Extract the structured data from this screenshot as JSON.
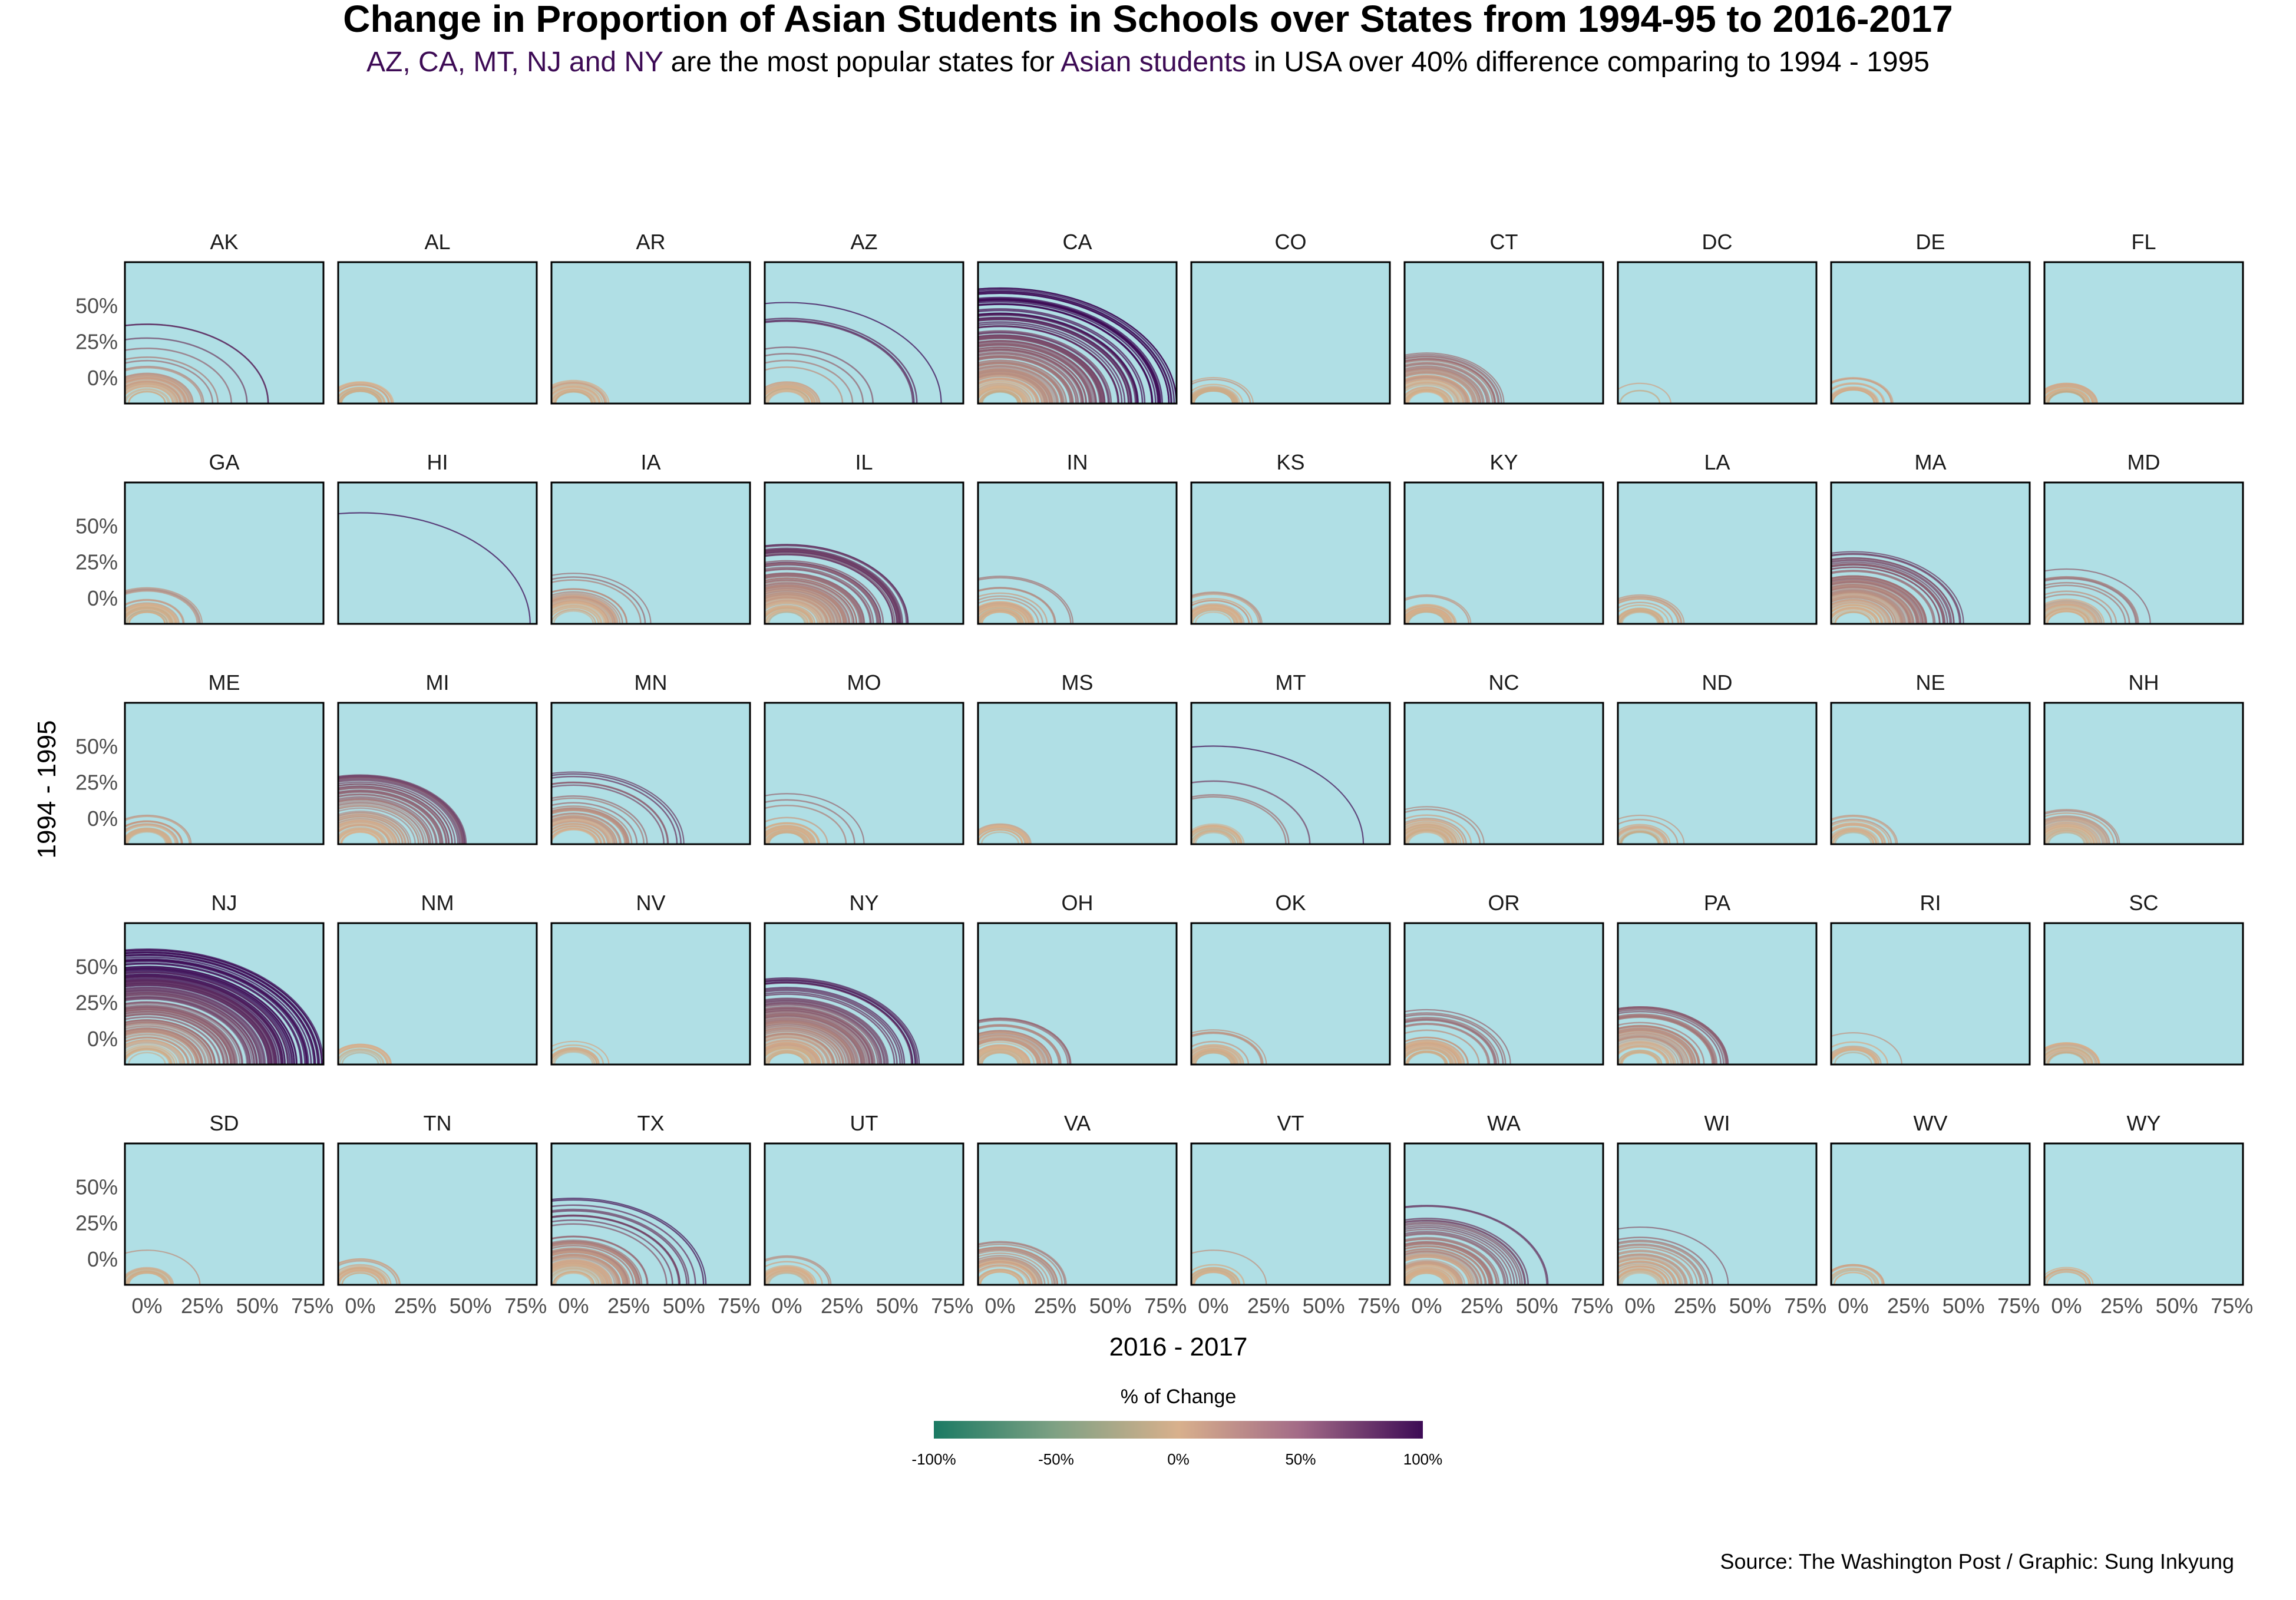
{
  "title": "Change in Proportion of Asian Students in Schools over States from 1994-95 to 2016-2017",
  "subtitle": {
    "part1": "AZ, CA, MT, NJ and NY",
    "part2": " are the most popular states for ",
    "part3": "Asian students",
    "part4": " in USA over 40% difference comparing to 1994 - 1995"
  },
  "colors": {
    "panel_bg": "#b0dfe5",
    "accent_text": "#3d0b55",
    "scale_low": "#1b7a63",
    "scale_mid": "#d8b08c",
    "scale_high": "#3d0b55"
  },
  "legend": {
    "title": "% of Change",
    "ticks": [
      "-100%",
      "-50%",
      "0%",
      "50%",
      "100%"
    ]
  },
  "source": "Source: The Washington Post / Graphic: Sung Inkyung",
  "chart_data": {
    "type": "facet-arc",
    "xlabel": "2016 - 2017",
    "ylabel": "1994 - 1995",
    "xlim": [
      -0.1,
      0.8
    ],
    "ylim": [
      -0.18,
      0.8
    ],
    "x_ticks": [
      "0%",
      "25%",
      "50%",
      "75%"
    ],
    "x_tick_values": [
      0,
      0.25,
      0.5,
      0.75
    ],
    "y_ticks": [
      "50%",
      "25%",
      "0%"
    ],
    "y_tick_values": [
      0.5,
      0.25,
      0
    ],
    "color_scale": {
      "label": "% of Change",
      "domain": [
        -1,
        1
      ]
    },
    "facets": [
      {
        "state": "AK",
        "max_radius": 0.55,
        "dense_radius": 0.22,
        "arc_count": 45
      },
      {
        "state": "AL",
        "max_radius": 0.15,
        "dense_radius": 0.12,
        "arc_count": 20
      },
      {
        "state": "AR",
        "max_radius": 0.16,
        "dense_radius": 0.12,
        "arc_count": 20
      },
      {
        "state": "AZ",
        "max_radius": 0.7,
        "dense_radius": 0.15,
        "arc_count": 30
      },
      {
        "state": "CA",
        "max_radius": 0.8,
        "dense_radius": 0.5,
        "arc_count": 160
      },
      {
        "state": "CO",
        "max_radius": 0.18,
        "dense_radius": 0.12,
        "arc_count": 25
      },
      {
        "state": "CT",
        "max_radius": 0.35,
        "dense_radius": 0.25,
        "arc_count": 60
      },
      {
        "state": "DC",
        "max_radius": 0.14,
        "dense_radius": 0.0,
        "arc_count": 2
      },
      {
        "state": "DE",
        "max_radius": 0.18,
        "dense_radius": 0.12,
        "arc_count": 15
      },
      {
        "state": "FL",
        "max_radius": 0.14,
        "dense_radius": 0.12,
        "arc_count": 25
      },
      {
        "state": "GA",
        "max_radius": 0.25,
        "dense_radius": 0.14,
        "arc_count": 30
      },
      {
        "state": "HI",
        "max_radius": 0.77,
        "dense_radius": 0.0,
        "arc_count": 1
      },
      {
        "state": "IA",
        "max_radius": 0.35,
        "dense_radius": 0.18,
        "arc_count": 35
      },
      {
        "state": "IL",
        "max_radius": 0.55,
        "dense_radius": 0.35,
        "arc_count": 110
      },
      {
        "state": "IN",
        "max_radius": 0.33,
        "dense_radius": 0.15,
        "arc_count": 35
      },
      {
        "state": "KS",
        "max_radius": 0.22,
        "dense_radius": 0.14,
        "arc_count": 25
      },
      {
        "state": "KY",
        "max_radius": 0.2,
        "dense_radius": 0.12,
        "arc_count": 25
      },
      {
        "state": "LA",
        "max_radius": 0.2,
        "dense_radius": 0.12,
        "arc_count": 20
      },
      {
        "state": "MA",
        "max_radius": 0.5,
        "dense_radius": 0.3,
        "arc_count": 90
      },
      {
        "state": "MD",
        "max_radius": 0.38,
        "dense_radius": 0.15,
        "arc_count": 30
      },
      {
        "state": "ME",
        "max_radius": 0.2,
        "dense_radius": 0.12,
        "arc_count": 20
      },
      {
        "state": "MI",
        "max_radius": 0.48,
        "dense_radius": 0.3,
        "arc_count": 70
      },
      {
        "state": "MN",
        "max_radius": 0.5,
        "dense_radius": 0.25,
        "arc_count": 50
      },
      {
        "state": "MO",
        "max_radius": 0.35,
        "dense_radius": 0.15,
        "arc_count": 30
      },
      {
        "state": "MS",
        "max_radius": 0.14,
        "dense_radius": 0.12,
        "arc_count": 15
      },
      {
        "state": "MT",
        "max_radius": 0.68,
        "dense_radius": 0.14,
        "arc_count": 20
      },
      {
        "state": "NC",
        "max_radius": 0.26,
        "dense_radius": 0.14,
        "arc_count": 30
      },
      {
        "state": "ND",
        "max_radius": 0.2,
        "dense_radius": 0.12,
        "arc_count": 15
      },
      {
        "state": "NE",
        "max_radius": 0.2,
        "dense_radius": 0.12,
        "arc_count": 20
      },
      {
        "state": "NH",
        "max_radius": 0.24,
        "dense_radius": 0.2,
        "arc_count": 30
      },
      {
        "state": "NJ",
        "max_radius": 0.8,
        "dense_radius": 0.6,
        "arc_count": 160
      },
      {
        "state": "NM",
        "max_radius": 0.14,
        "dense_radius": 0.12,
        "arc_count": 10
      },
      {
        "state": "NV",
        "max_radius": 0.16,
        "dense_radius": 0.12,
        "arc_count": 12
      },
      {
        "state": "NY",
        "max_radius": 0.6,
        "dense_radius": 0.4,
        "arc_count": 120
      },
      {
        "state": "OH",
        "max_radius": 0.32,
        "dense_radius": 0.22,
        "arc_count": 50
      },
      {
        "state": "OK",
        "max_radius": 0.24,
        "dense_radius": 0.14,
        "arc_count": 25
      },
      {
        "state": "OR",
        "max_radius": 0.38,
        "dense_radius": 0.2,
        "arc_count": 45
      },
      {
        "state": "PA",
        "max_radius": 0.4,
        "dense_radius": 0.28,
        "arc_count": 60
      },
      {
        "state": "RI",
        "max_radius": 0.22,
        "dense_radius": 0.12,
        "arc_count": 15
      },
      {
        "state": "SC",
        "max_radius": 0.15,
        "dense_radius": 0.12,
        "arc_count": 20
      },
      {
        "state": "SD",
        "max_radius": 0.24,
        "dense_radius": 0.12,
        "arc_count": 15
      },
      {
        "state": "TN",
        "max_radius": 0.18,
        "dense_radius": 0.12,
        "arc_count": 20
      },
      {
        "state": "TX",
        "max_radius": 0.6,
        "dense_radius": 0.3,
        "arc_count": 80
      },
      {
        "state": "UT",
        "max_radius": 0.2,
        "dense_radius": 0.12,
        "arc_count": 20
      },
      {
        "state": "VA",
        "max_radius": 0.3,
        "dense_radius": 0.2,
        "arc_count": 40
      },
      {
        "state": "VT",
        "max_radius": 0.24,
        "dense_radius": 0.12,
        "arc_count": 15
      },
      {
        "state": "WA",
        "max_radius": 0.55,
        "dense_radius": 0.3,
        "arc_count": 80
      },
      {
        "state": "WI",
        "max_radius": 0.4,
        "dense_radius": 0.22,
        "arc_count": 40
      },
      {
        "state": "WV",
        "max_radius": 0.14,
        "dense_radius": 0.12,
        "arc_count": 10
      },
      {
        "state": "WY",
        "max_radius": 0.12,
        "dense_radius": 0.1,
        "arc_count": 8
      }
    ]
  }
}
